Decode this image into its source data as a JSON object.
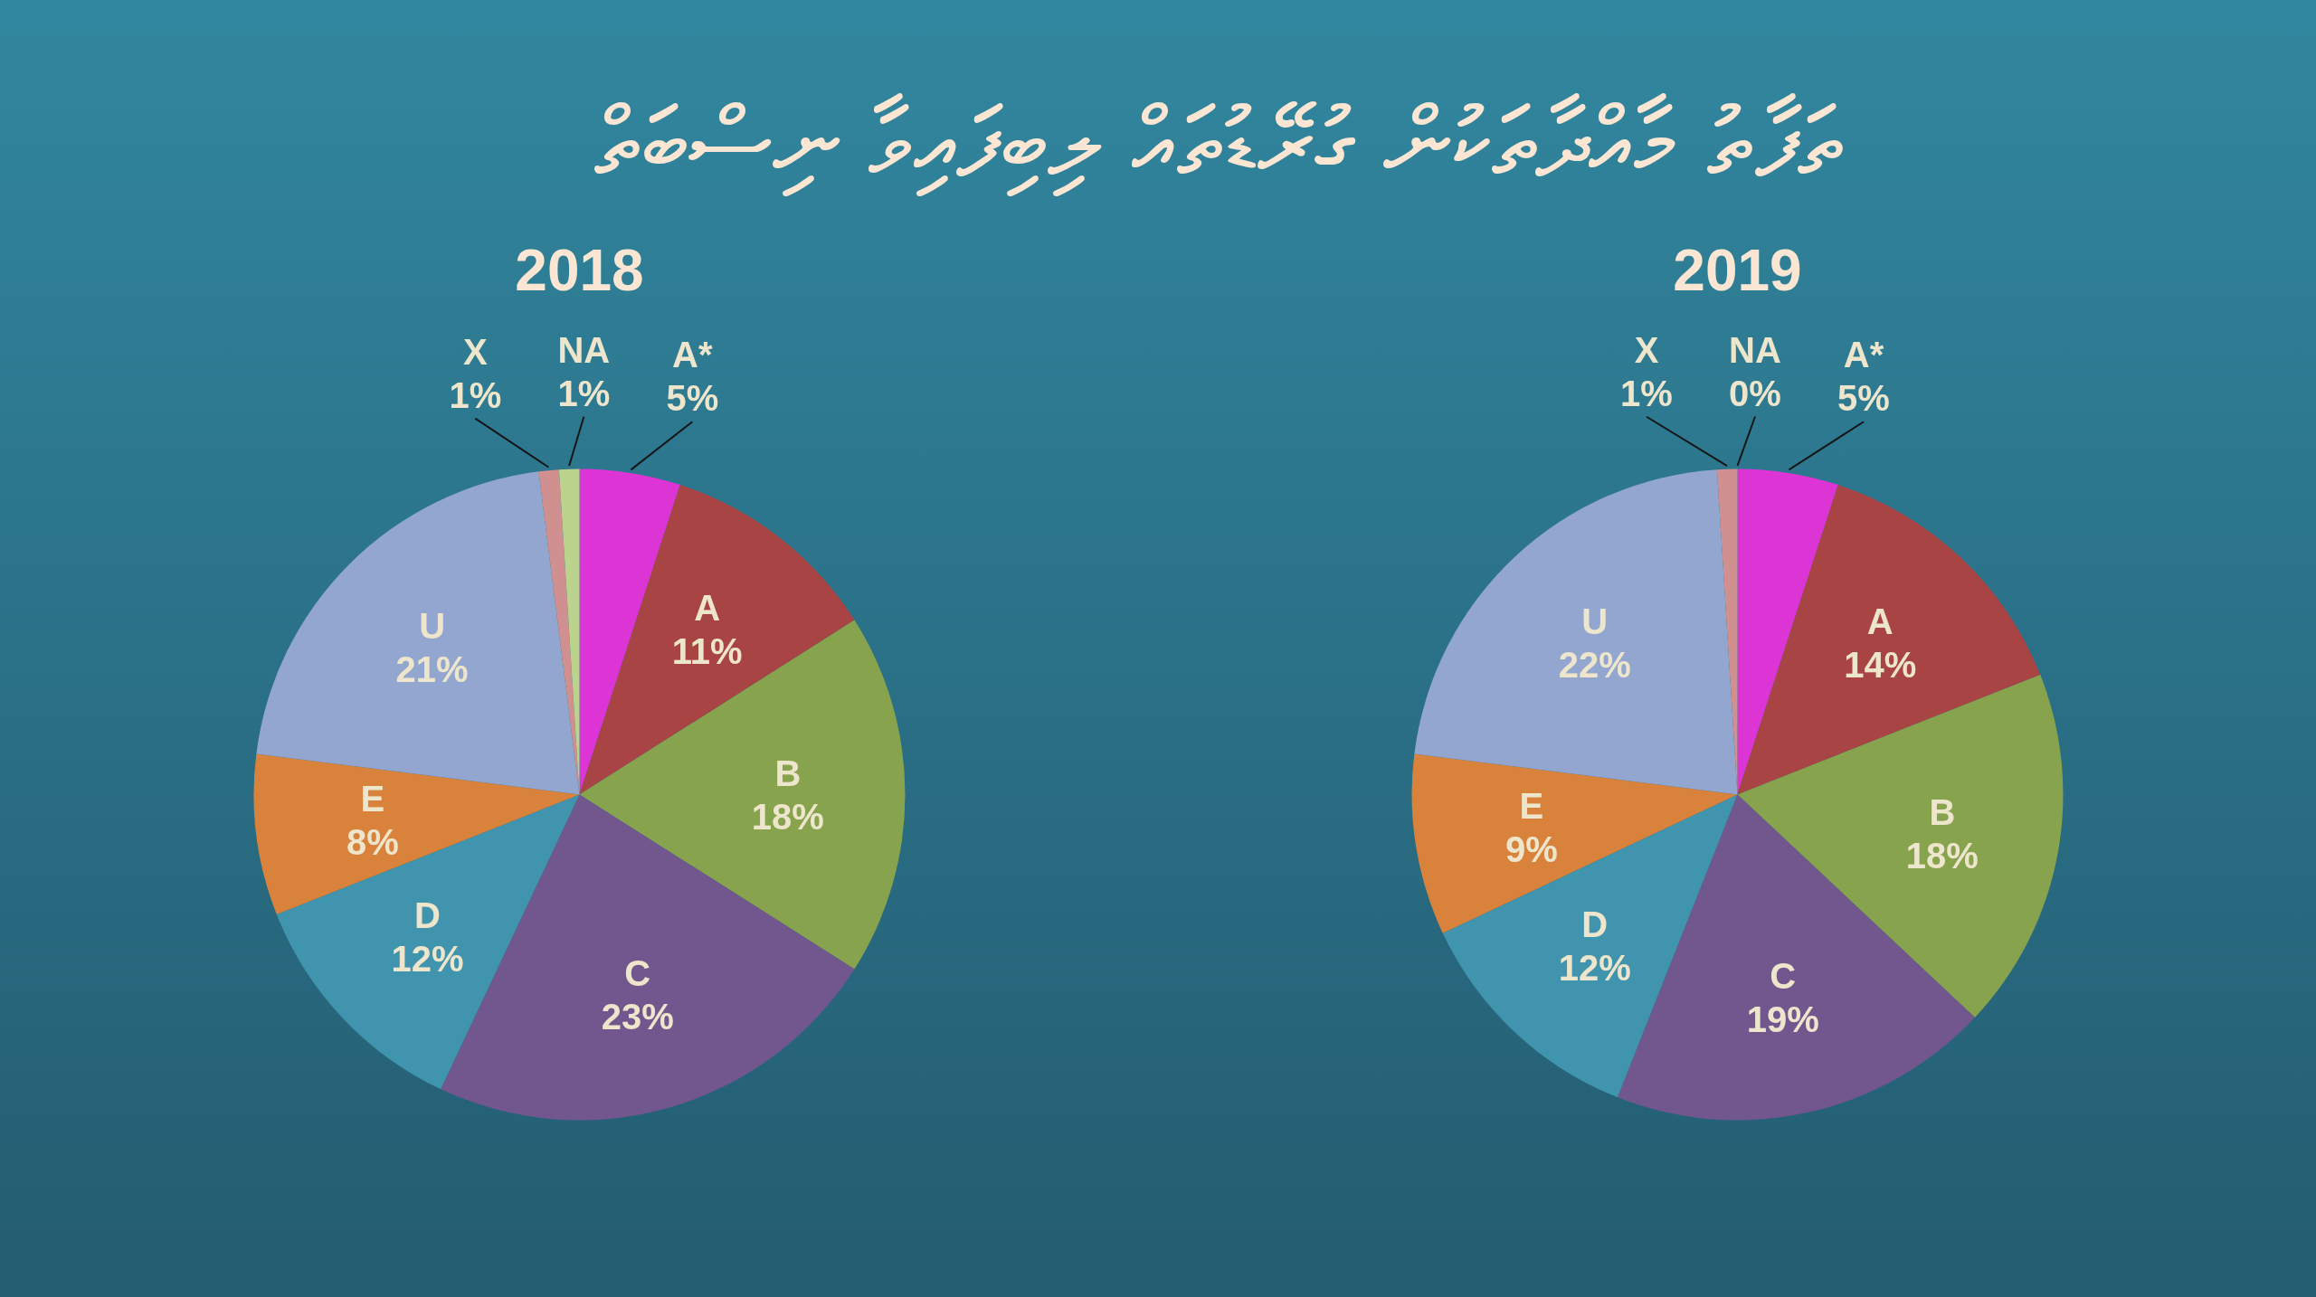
{
  "chart_data": [
    {
      "type": "other",
      "title": "ތަފާތު މާއްދާތަކުން ގުރޭޑުތައް ލިބިފައިވާ ނިސްބަތް"
    },
    {
      "type": "pie",
      "title": "2018",
      "categories": [
        "A*",
        "A",
        "B",
        "C",
        "D",
        "E",
        "U",
        "X",
        "NA"
      ],
      "values": [
        5,
        11,
        18,
        23,
        12,
        8,
        21,
        1,
        1
      ],
      "value_labels": [
        "5%",
        "11%",
        "18%",
        "23%",
        "12%",
        "8%",
        "21%",
        "1%",
        "1%"
      ],
      "colors": [
        "#dd34d5",
        "#a84444",
        "#88a34e",
        "#72568e",
        "#4094ad",
        "#d9823c",
        "#92a6cf",
        "#d09090",
        "#bcd38e"
      ]
    },
    {
      "type": "pie",
      "title": "2019",
      "categories": [
        "A*",
        "A",
        "B",
        "C",
        "D",
        "E",
        "U",
        "X",
        "NA"
      ],
      "values": [
        5,
        14,
        18,
        19,
        12,
        9,
        22,
        1,
        0
      ],
      "value_labels": [
        "5%",
        "14%",
        "18%",
        "19%",
        "12%",
        "9%",
        "22%",
        "1%",
        "0%"
      ],
      "colors": [
        "#dd34d5",
        "#a84444",
        "#88a34e",
        "#72568e",
        "#4094ad",
        "#d9823c",
        "#92a6cf",
        "#d09090",
        "#bcd38e"
      ]
    }
  ]
}
